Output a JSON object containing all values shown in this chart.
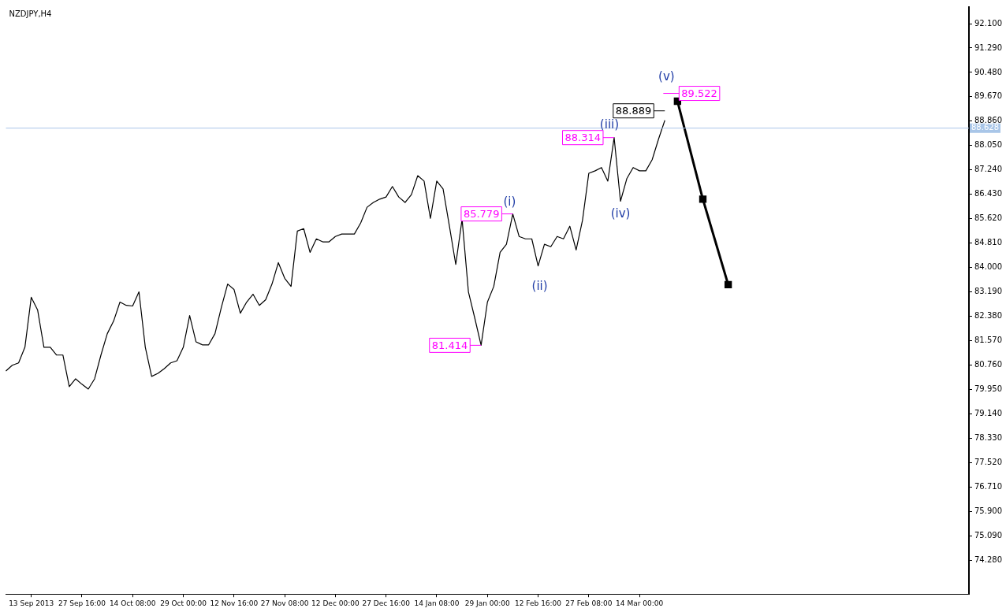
{
  "chart_data": {
    "type": "line",
    "title": "NZDJPY,H4",
    "categories": [
      null,
      null,
      null,
      null,
      "13 Sep 2013",
      null,
      null,
      null,
      null,
      null,
      null,
      null,
      "27 Sep 16:00",
      null,
      null,
      null,
      null,
      null,
      null,
      null,
      "14 Oct 08:00",
      null,
      null,
      null,
      null,
      null,
      null,
      null,
      "29 Oct 00:00",
      null,
      null,
      null,
      null,
      null,
      null,
      null,
      "12 Nov 16:00",
      null,
      null,
      null,
      null,
      null,
      null,
      null,
      "27 Nov 08:00",
      null,
      null,
      null,
      null,
      null,
      null,
      null,
      "12 Dec 00:00",
      null,
      null,
      null,
      null,
      null,
      null,
      null,
      "27 Dec 16:00",
      null,
      null,
      null,
      null,
      null,
      null,
      null,
      "14 Jan 08:00",
      null,
      null,
      null,
      null,
      null,
      null,
      null,
      "29 Jan 00:00",
      null,
      null,
      null,
      null,
      null,
      null,
      null,
      "12 Feb 16:00",
      null,
      null,
      null,
      null,
      null,
      null,
      null,
      "27 Feb 08:00",
      null,
      null,
      null,
      null,
      null,
      null,
      null,
      "14 Mar 00:00",
      null,
      null,
      null,
      null,
      null,
      null,
      null,
      null,
      null,
      null,
      null,
      null,
      null,
      null,
      null,
      null,
      null,
      null,
      null,
      null,
      null,
      null,
      null,
      null,
      null,
      null,
      null,
      null,
      null,
      null,
      null,
      null,
      null,
      null,
      null,
      null,
      null,
      null,
      null,
      null,
      null,
      null,
      null,
      null,
      null,
      null,
      null,
      null,
      null,
      null,
      null,
      null
    ],
    "series": [
      {
        "color": "#000000",
        "marker": "none",
        "values": [
          80.56,
          80.75,
          80.83,
          81.35,
          83.01,
          82.59,
          81.35,
          81.35,
          81.09,
          81.09,
          80.04,
          80.3,
          80.12,
          79.96,
          80.3,
          81.09,
          81.8,
          82.22,
          82.85,
          82.74,
          82.72,
          83.19,
          81.35,
          80.38,
          80.48,
          80.64,
          80.83,
          80.9,
          81.35,
          82.4,
          81.53,
          81.43,
          81.43,
          81.8,
          82.67,
          83.45,
          83.27,
          82.48,
          82.85,
          83.11,
          82.74,
          82.93,
          83.45,
          84.16,
          83.64,
          83.37,
          85.21,
          85.29,
          84.5,
          84.95,
          84.85,
          84.85,
          85.03,
          85.11,
          85.11,
          85.11,
          85.48,
          86.0,
          86.16,
          86.27,
          86.34,
          86.69,
          86.34,
          86.16,
          86.42,
          87.05,
          86.87,
          85.63,
          86.87,
          86.61,
          85.37,
          84.1,
          85.6,
          83.19,
          82.32,
          81.414,
          82.85,
          83.37,
          84.5,
          84.77,
          85.779,
          85.03,
          84.95,
          84.95,
          84.05,
          84.77,
          84.69,
          85.03,
          84.95,
          85.37,
          84.58,
          85.56,
          87.13,
          87.21,
          87.32,
          86.87,
          88.314,
          86.2,
          86.95,
          87.32,
          87.21,
          87.21,
          87.58,
          88.26,
          88.889,
          null,
          null,
          null,
          null,
          null,
          null,
          null,
          null,
          null,
          null,
          null,
          null,
          null,
          null,
          null,
          null,
          null,
          null,
          null,
          null,
          null,
          null,
          null,
          null,
          null,
          null,
          null,
          null,
          null,
          null,
          null,
          null,
          null,
          null,
          null,
          null,
          null,
          null,
          null,
          null,
          null,
          null,
          null,
          null,
          null,
          null,
          null,
          null
        ]
      },
      {
        "color": "#000000",
        "marker": "square",
        "values": [
          null,
          null,
          null,
          null,
          null,
          null,
          null,
          null,
          null,
          null,
          null,
          null,
          null,
          null,
          null,
          null,
          null,
          null,
          null,
          null,
          null,
          null,
          null,
          null,
          null,
          null,
          null,
          null,
          null,
          null,
          null,
          null,
          null,
          null,
          null,
          null,
          null,
          null,
          null,
          null,
          null,
          null,
          null,
          null,
          null,
          null,
          null,
          null,
          null,
          null,
          null,
          null,
          null,
          null,
          null,
          null,
          null,
          null,
          null,
          null,
          null,
          null,
          null,
          null,
          null,
          null,
          null,
          null,
          null,
          null,
          null,
          null,
          null,
          null,
          null,
          null,
          null,
          null,
          null,
          null,
          null,
          null,
          null,
          null,
          null,
          null,
          null,
          null,
          null,
          null,
          null,
          null,
          null,
          null,
          null,
          null,
          null,
          null,
          null,
          null,
          null,
          null,
          null,
          null,
          null,
          null,
          89.522,
          null,
          null,
          null,
          86.27,
          null,
          null,
          null,
          83.43,
          null,
          null,
          null,
          null,
          null,
          null,
          null,
          null,
          null,
          null,
          null,
          null,
          null,
          null,
          null,
          null,
          null,
          null,
          null,
          null,
          null,
          null,
          null,
          null,
          null,
          null,
          null,
          null,
          null,
          null,
          null,
          null,
          null,
          null,
          null,
          null,
          null,
          null
        ]
      }
    ],
    "ylim": [
      73.15,
      92.65
    ],
    "yticks": [
      {
        "value": 74.28,
        "label": "74.280"
      },
      {
        "value": 75.09,
        "label": "75.090"
      },
      {
        "value": 75.9,
        "label": "75.900"
      },
      {
        "value": 76.71,
        "label": "76.710"
      },
      {
        "value": 77.52,
        "label": "77.520"
      },
      {
        "value": 78.33,
        "label": "78.330"
      },
      {
        "value": 79.14,
        "label": "79.140"
      },
      {
        "value": 79.95,
        "label": "79.950"
      },
      {
        "value": 80.76,
        "label": "80.760"
      },
      {
        "value": 81.57,
        "label": "81.570"
      },
      {
        "value": 82.38,
        "label": "82.380"
      },
      {
        "value": 83.19,
        "label": "83.190"
      },
      {
        "value": 84,
        "label": "84.000"
      },
      {
        "value": 84.81,
        "label": "84.810"
      },
      {
        "value": 85.62,
        "label": "85.620"
      },
      {
        "value": 86.43,
        "label": "86.430"
      },
      {
        "value": 87.24,
        "label": "87.240"
      },
      {
        "value": 88.05,
        "label": "88.050"
      },
      {
        "value": 88.86,
        "label": "88.860"
      },
      {
        "value": 89.67,
        "label": "89.670"
      },
      {
        "value": 90.48,
        "label": "90.480"
      },
      {
        "value": 91.29,
        "label": "91.290"
      },
      {
        "value": 92.1,
        "label": "92.100"
      }
    ],
    "ref_lines": [
      {
        "axis": "y",
        "value": 88.628,
        "label": "88.628",
        "color": "#a9c6e8"
      }
    ],
    "annotations": [
      "(i)",
      "(ii)",
      "(iii)",
      "(iv)",
      "(v)",
      "85.779",
      "81.414",
      "88.314",
      "88.889",
      "89.522"
    ],
    "grid": false
  }
}
